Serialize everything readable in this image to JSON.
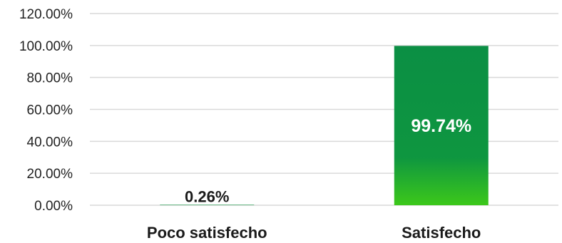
{
  "chart_data": {
    "type": "bar",
    "categories": [
      "Poco satisfecho",
      "Satisfecho"
    ],
    "values": [
      0.26,
      99.74
    ],
    "data_labels": [
      "0.26%",
      "99.74%"
    ],
    "title": "",
    "xlabel": "",
    "ylabel": "",
    "ylim": [
      0,
      120
    ],
    "yticks": [
      "0.00%",
      "20.00%",
      "40.00%",
      "60.00%",
      "80.00%",
      "100.00%",
      "120.00%"
    ],
    "grid": true,
    "legend": "none",
    "colors": {
      "bar_top": "#0b8f44",
      "bar_mid": "#0e9640",
      "bar_bottom": "#3cc81a"
    }
  }
}
